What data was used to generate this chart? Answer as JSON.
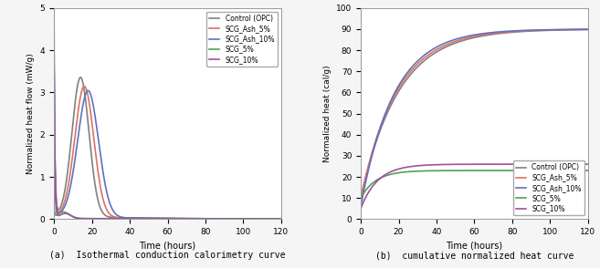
{
  "legend_labels": [
    "Control (OPC)",
    "SCG_Ash_5%",
    "SCG_Ash_10%",
    "SCG_5%",
    "SCG_10%"
  ],
  "colors": [
    "#808080",
    "#e07060",
    "#6070c0",
    "#50a050",
    "#a050a0"
  ],
  "linewidths": [
    1.2,
    1.2,
    1.2,
    1.2,
    1.2
  ],
  "left_title": "(a)  Isothermal conduction calorimetry curve",
  "right_title": "(b)  cumulative normalized heat curve",
  "left_ylabel": "Normalized heat flow (mW/g)",
  "right_ylabel": "Normalized heat (cal/g)",
  "xlabel": "Time (hours)",
  "left_ylim": [
    0,
    5
  ],
  "right_ylim": [
    0,
    100
  ],
  "xlim": [
    0,
    120
  ],
  "left_yticks": [
    0,
    1,
    2,
    3,
    4,
    5
  ],
  "right_yticks": [
    0,
    10,
    20,
    30,
    40,
    50,
    60,
    70,
    80,
    90,
    100
  ],
  "xticks": [
    0,
    20,
    40,
    60,
    80,
    100,
    120
  ],
  "bg_color": "#f5f5f5",
  "panel_bg": "#ffffff"
}
